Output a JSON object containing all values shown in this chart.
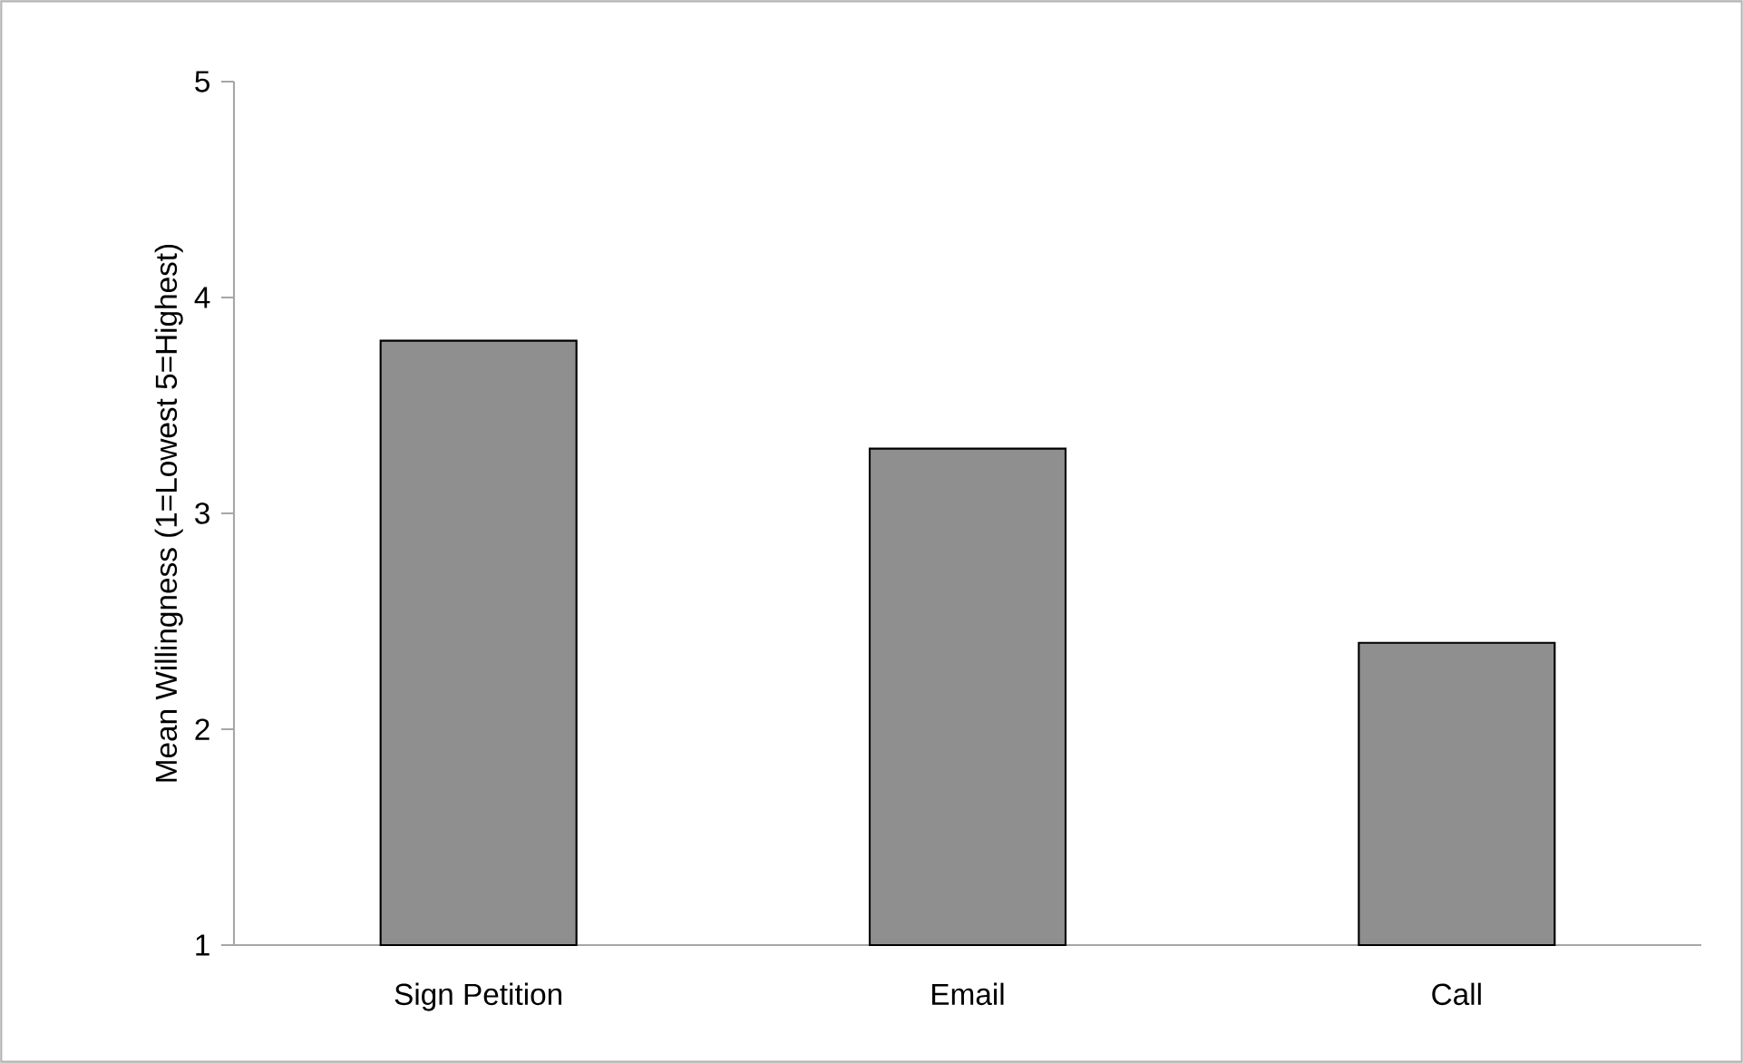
{
  "chart_data": {
    "type": "bar",
    "ylabel": "Mean Willingness (1=Lowest 5=Highest)",
    "categories": [
      "Sign Petition",
      "Email",
      "Call"
    ],
    "values": [
      3.8,
      3.3,
      2.4
    ],
    "color": "#8f8f8f",
    "ylim": [
      1,
      5
    ],
    "yticks": [
      1,
      2,
      3,
      4,
      5
    ]
  }
}
